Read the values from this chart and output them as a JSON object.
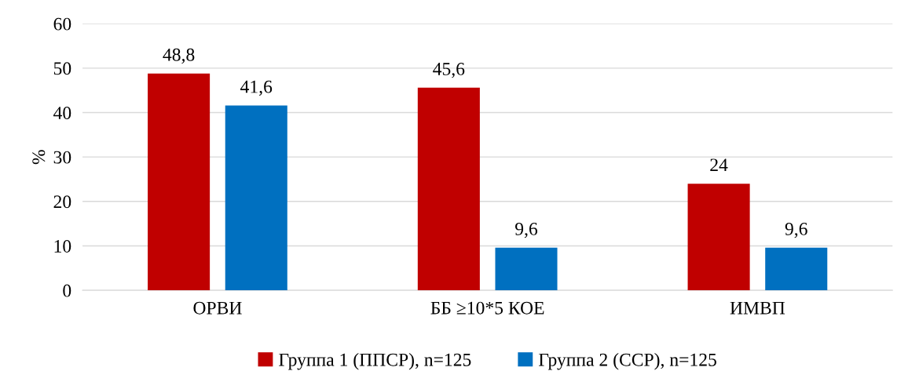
{
  "chart_data": {
    "type": "bar",
    "ylabel": "%",
    "categories": [
      "ОРВИ",
      "ББ ≥10*5 КОЕ",
      "ИМВП"
    ],
    "series": [
      {
        "name": "Группа 1 (ППСР), n=125",
        "color": "#c00000",
        "values": [
          48.8,
          45.6,
          24
        ],
        "value_labels": [
          "48,8",
          "45,6",
          "24"
        ]
      },
      {
        "name": "Группа 2 (ССР), n=125",
        "color": "#0070c0",
        "values": [
          41.6,
          9.6,
          9.6
        ],
        "value_labels": [
          "41,6",
          "9,6",
          "9,6"
        ]
      }
    ],
    "ylim": [
      0,
      60
    ],
    "yticks": [
      0,
      10,
      20,
      30,
      40,
      50,
      60
    ],
    "grid": "y",
    "legend": "bottom"
  }
}
